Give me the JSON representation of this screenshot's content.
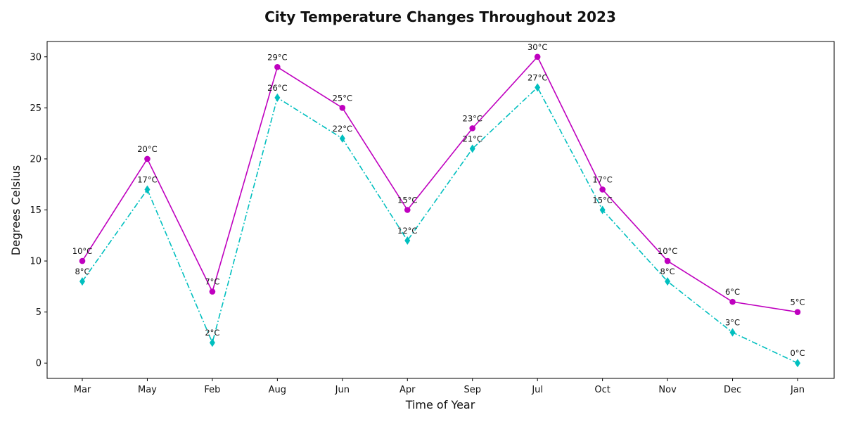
{
  "chart_data": {
    "type": "line",
    "title": "City Temperature Changes Throughout 2023",
    "xlabel": "Time of Year",
    "ylabel": "Degrees Celsius",
    "categories": [
      "Mar",
      "May",
      "Feb",
      "Aug",
      "Jun",
      "Apr",
      "Sep",
      "Jul",
      "Oct",
      "Nov",
      "Dec",
      "Jan"
    ],
    "ylim": [
      -1.5,
      31.5
    ],
    "yticks": [
      0,
      5,
      10,
      15,
      20,
      25,
      30
    ],
    "unit_suffix": "°C",
    "grid": false,
    "legend": "none",
    "series": [
      {
        "values": [
          10,
          20,
          7,
          29,
          25,
          15,
          23,
          30,
          17,
          10,
          6,
          5
        ],
        "color": "#bf00bf",
        "line_style": "solid",
        "marker": "circle"
      },
      {
        "values": [
          8,
          17,
          2,
          26,
          22,
          12,
          21,
          27,
          15,
          8,
          3,
          0
        ],
        "color": "#00bfbf",
        "line_style": "dash-dot",
        "marker": "thin-diamond"
      }
    ]
  }
}
